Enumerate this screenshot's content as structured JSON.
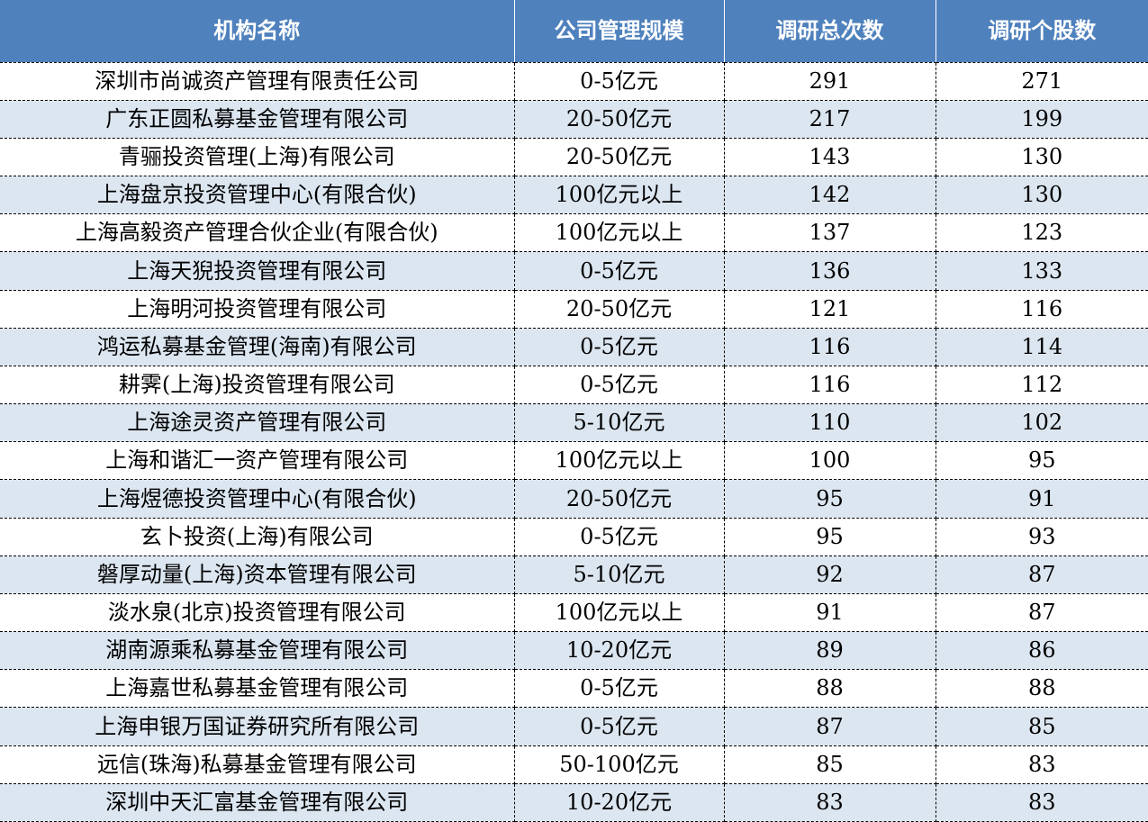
{
  "chart_data": {
    "type": "table",
    "columns": [
      "机构名称",
      "公司管理规模",
      "调研总次数",
      "调研个股数"
    ],
    "rows": [
      [
        "深圳市尚诚资产管理有限责任公司",
        "0-5亿元",
        "291",
        "271"
      ],
      [
        "广东正圆私募基金管理有限公司",
        "20-50亿元",
        "217",
        "199"
      ],
      [
        "青骊投资管理(上海)有限公司",
        "20-50亿元",
        "143",
        "130"
      ],
      [
        "上海盘京投资管理中心(有限合伙)",
        "100亿元以上",
        "142",
        "130"
      ],
      [
        "上海高毅资产管理合伙企业(有限合伙)",
        "100亿元以上",
        "137",
        "123"
      ],
      [
        "上海天猊投资管理有限公司",
        "0-5亿元",
        "136",
        "133"
      ],
      [
        "上海明河投资管理有限公司",
        "20-50亿元",
        "121",
        "116"
      ],
      [
        "鸿运私募基金管理(海南)有限公司",
        "0-5亿元",
        "116",
        "114"
      ],
      [
        "耕霁(上海)投资管理有限公司",
        "0-5亿元",
        "116",
        "112"
      ],
      [
        "上海途灵资产管理有限公司",
        "5-10亿元",
        "110",
        "102"
      ],
      [
        "上海和谐汇一资产管理有限公司",
        "100亿元以上",
        "100",
        "95"
      ],
      [
        "上海煜德投资管理中心(有限合伙)",
        "20-50亿元",
        "95",
        "91"
      ],
      [
        "玄卜投资(上海)有限公司",
        "0-5亿元",
        "95",
        "93"
      ],
      [
        "磐厚动量(上海)资本管理有限公司",
        "5-10亿元",
        "92",
        "87"
      ],
      [
        "淡水泉(北京)投资管理有限公司",
        "100亿元以上",
        "91",
        "87"
      ],
      [
        "湖南源乘私募基金管理有限公司",
        "10-20亿元",
        "89",
        "86"
      ],
      [
        "上海嘉世私募基金管理有限公司",
        "0-5亿元",
        "88",
        "88"
      ],
      [
        "上海申银万国证券研究所有限公司",
        "0-5亿元",
        "87",
        "85"
      ],
      [
        "远信(珠海)私募基金管理有限公司",
        "50-100亿元",
        "85",
        "83"
      ],
      [
        "深圳中天汇富基金管理有限公司",
        "10-20亿元",
        "83",
        "83"
      ]
    ],
    "colors": {
      "header_bg": "#4F81BD",
      "header_text": "#FFFFFF",
      "row_bg": "#FFFFFF",
      "row_alt_bg": "#DCE6F1",
      "border": "#000000",
      "text": "#000000"
    },
    "layout": {
      "grid": "dashed",
      "striped": true
    }
  }
}
